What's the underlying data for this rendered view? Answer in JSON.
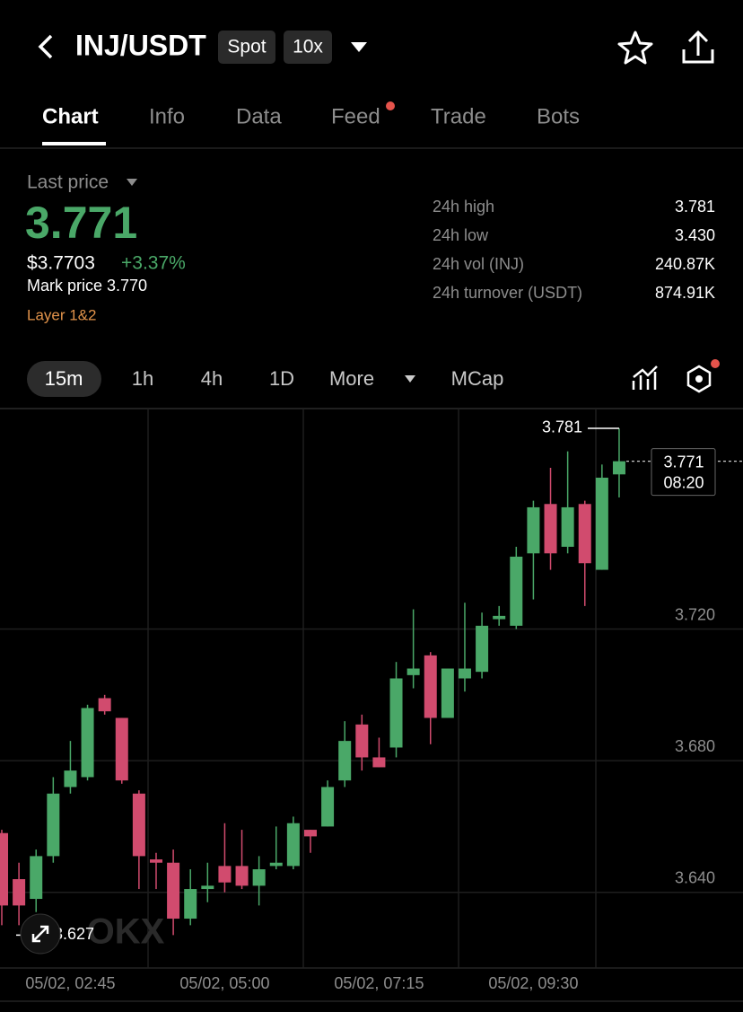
{
  "header": {
    "pair": "INJ/USDT",
    "tags": [
      "Spot",
      "10x"
    ]
  },
  "tabs": [
    "Chart",
    "Info",
    "Data",
    "Feed",
    "Trade",
    "Bots"
  ],
  "price": {
    "label": "Last price",
    "last": "3.771",
    "usd": "$3.7703",
    "change": "+3.37%",
    "mark": "Mark price 3.770",
    "tag": "Layer 1&2"
  },
  "stats": [
    [
      "24h high",
      "3.781"
    ],
    [
      "24h low",
      "3.430"
    ],
    [
      "24h vol (INJ)",
      "240.87K"
    ],
    [
      "24h turnover (USDT)",
      "874.91K"
    ]
  ],
  "intervals": [
    "15m",
    "1h",
    "4h",
    "1D",
    "More",
    "MCap"
  ],
  "chart_data": {
    "type": "candlestick",
    "categories": [
      null,
      null,
      null,
      null,
      "05/02, 02:45",
      null,
      null,
      null,
      null,
      null,
      null,
      null,
      null,
      "05/02, 05:00",
      null,
      null,
      null,
      null,
      null,
      null,
      null,
      null,
      "05/02, 07:15",
      null,
      null,
      null,
      null,
      null,
      null,
      null,
      null,
      "05/02, 09:30",
      null,
      null,
      null,
      null,
      null
    ],
    "open": [
      3.658,
      3.644,
      3.638,
      3.651,
      3.672,
      3.675,
      3.699,
      3.693,
      3.67,
      3.65,
      3.649,
      3.632,
      3.641,
      3.648,
      3.648,
      3.642,
      3.648,
      3.648,
      3.659,
      3.66,
      3.674,
      3.691,
      3.681,
      3.684,
      3.706,
      3.712,
      3.693,
      3.705,
      3.707,
      3.723,
      3.721,
      3.743,
      3.758,
      3.745,
      3.758,
      3.738,
      3.767
    ],
    "high": [
      3.659,
      3.649,
      3.653,
      3.675,
      3.686,
      3.697,
      3.7,
      3.693,
      3.671,
      3.652,
      3.653,
      3.647,
      3.649,
      3.661,
      3.659,
      3.651,
      3.66,
      3.663,
      3.659,
      3.674,
      3.692,
      3.694,
      3.687,
      3.71,
      3.726,
      3.713,
      3.708,
      3.728,
      3.725,
      3.727,
      3.745,
      3.759,
      3.769,
      3.774,
      3.759,
      3.77,
      3.781
    ],
    "low": [
      3.63,
      3.63,
      3.634,
      3.649,
      3.67,
      3.674,
      3.694,
      3.673,
      3.641,
      3.641,
      3.627,
      3.63,
      3.637,
      3.64,
      3.641,
      3.636,
      3.647,
      3.647,
      3.652,
      3.66,
      3.672,
      3.677,
      3.678,
      3.681,
      3.702,
      3.685,
      3.693,
      3.701,
      3.705,
      3.721,
      3.72,
      3.729,
      3.738,
      3.743,
      3.727,
      3.738,
      3.76
    ],
    "close": [
      3.636,
      3.636,
      3.651,
      3.67,
      3.677,
      3.696,
      3.695,
      3.674,
      3.651,
      3.649,
      3.632,
      3.641,
      3.642,
      3.643,
      3.642,
      3.647,
      3.649,
      3.661,
      3.657,
      3.672,
      3.686,
      3.681,
      3.678,
      3.705,
      3.708,
      3.693,
      3.708,
      3.708,
      3.721,
      3.724,
      3.742,
      3.757,
      3.743,
      3.757,
      3.74,
      3.766,
      3.771
    ],
    "up_color": "#4aa868",
    "down_color": "#d14b6e",
    "ylim": [
      3.617,
      3.787
    ],
    "yticks": [
      {
        "value": 3.64,
        "label": "3.640"
      },
      {
        "value": 3.68,
        "label": "3.680"
      },
      {
        "value": 3.72,
        "label": "3.720"
      }
    ],
    "grid": true,
    "annotations": {
      "high": "3.781",
      "low": "3.627",
      "current": "3.771",
      "countdown": "08:20"
    },
    "watermark": "OKX"
  }
}
